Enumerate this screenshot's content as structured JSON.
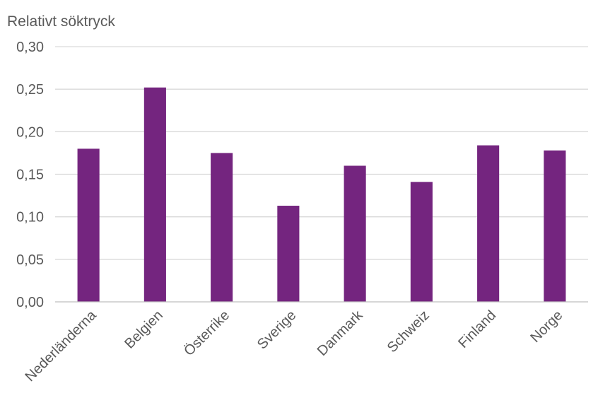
{
  "chart_data": {
    "type": "bar",
    "title": "Relativt söktryck",
    "xlabel": "",
    "ylabel": "",
    "categories": [
      "Nederländerna",
      "Belgien",
      "Österrike",
      "Sverige",
      "Danmark",
      "Schweiz",
      "Finland",
      "Norge"
    ],
    "values": [
      0.18,
      0.252,
      0.175,
      0.113,
      0.16,
      0.141,
      0.184,
      0.178
    ],
    "ylim": [
      0,
      0.3
    ],
    "yticks": [
      "0,00",
      "0,05",
      "0,10",
      "0,15",
      "0,20",
      "0,25",
      "0,30"
    ],
    "grid": true,
    "legend": "none",
    "bar_color": "#74257f"
  }
}
